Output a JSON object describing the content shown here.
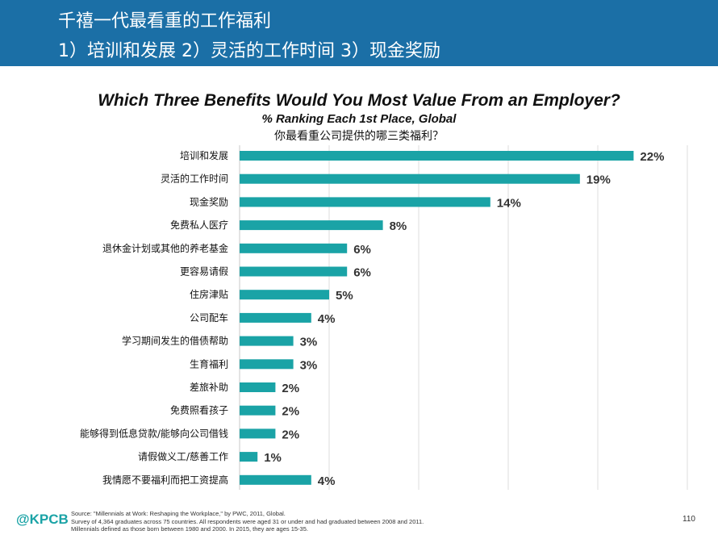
{
  "header": {
    "line1": "千禧一代最看重的工作福利",
    "line2": "1）培训和发展 2）灵活的工作时间 3）现金奖励"
  },
  "colors": {
    "header_bg": "#1b6fa6",
    "bar": "#1aa3a6",
    "logo": "#1aa3a6"
  },
  "chart_data": {
    "type": "bar",
    "orientation": "horizontal",
    "title": "Which Three Benefits Would You Most Value From an Employer?",
    "subtitle": "% Ranking Each 1st Place, Global",
    "subtitle_cn": "你最看重公司提供的哪三类福利？",
    "categories": [
      "培训和发展",
      "灵活的工作时间",
      "现金奖励",
      "免费私人医疗",
      "退休金计划或其他的养老基金",
      "更容易请假",
      "住房津贴",
      "公司配车",
      "学习期间发生的借债帮助",
      "生育福利",
      "差旅补助",
      "免费照看孩子",
      "能够得到低息贷款/能够向公司借钱",
      "请假做义工/慈善工作",
      "我情愿不要福利而把工资提高"
    ],
    "values": [
      22,
      19,
      14,
      8,
      6,
      6,
      5,
      4,
      3,
      3,
      2,
      2,
      2,
      1,
      4
    ],
    "value_labels": [
      "22%",
      "19%",
      "14%",
      "8%",
      "6%",
      "6%",
      "5%",
      "4%",
      "3%",
      "3%",
      "2%",
      "2%",
      "2%",
      "1%",
      "4%"
    ],
    "xlim": [
      0,
      25
    ],
    "grid": true,
    "legend": "none"
  },
  "footer": {
    "logo": "@KPCB",
    "source_lines": [
      "Source: \"Millennials at Work: Reshaping the Workplace,\" by PWC, 2011, Global.",
      "Survey of 4,364 graduates across 75 countries. All respondents were aged 31 or under and had graduated between 2008 and 2011.",
      "Millennials defined as those born between 1980 and 2000. In 2015, they are ages 15-35."
    ],
    "page_number": "110"
  }
}
